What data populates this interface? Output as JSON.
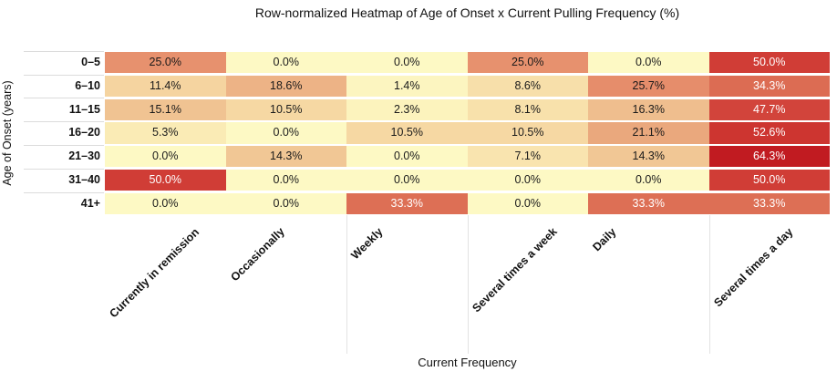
{
  "chart_data": {
    "type": "heatmap",
    "title": "Row-normalized Heatmap of Age of Onset x Current Pulling Frequency (%)",
    "xlabel": "Current Frequency",
    "ylabel": "Age of Onset (years)",
    "rows": [
      "0–5",
      "6–10",
      "11–15",
      "16–20",
      "21–30",
      "31–40",
      "41+"
    ],
    "columns": [
      "Currently in remission",
      "Occasionally",
      "Weekly",
      "Several times a week",
      "Daily",
      "Several times a day"
    ],
    "values": [
      [
        25.0,
        0.0,
        0.0,
        25.0,
        0.0,
        50.0
      ],
      [
        11.4,
        18.6,
        1.4,
        8.6,
        25.7,
        34.3
      ],
      [
        15.1,
        10.5,
        2.3,
        8.1,
        16.3,
        47.7
      ],
      [
        5.3,
        0.0,
        10.5,
        10.5,
        21.1,
        52.6
      ],
      [
        0.0,
        14.3,
        0.0,
        7.1,
        14.3,
        64.3
      ],
      [
        50.0,
        0.0,
        0.0,
        0.0,
        0.0,
        50.0
      ],
      [
        0.0,
        0.0,
        33.3,
        0.0,
        33.3,
        33.3
      ]
    ],
    "value_suffix": "%",
    "value_decimals": 1,
    "legend": "none",
    "grid": "faint column separators below plot and row separators in label margin",
    "color_scale": {
      "stops": [
        [
          0.0,
          "#FDF9C4"
        ],
        [
          5.3,
          "#FAEBB5"
        ],
        [
          10.5,
          "#F6D8A3"
        ],
        [
          14.3,
          "#F1C795"
        ],
        [
          18.6,
          "#EDB386"
        ],
        [
          21.1,
          "#EAA87D"
        ],
        [
          25.7,
          "#E68D6B"
        ],
        [
          33.3,
          "#DD6F55"
        ],
        [
          47.7,
          "#D2443B"
        ],
        [
          52.6,
          "#CD3530"
        ],
        [
          64.3,
          "#C11B21"
        ]
      ],
      "text_dark": "#1a1a1a",
      "text_light": "#ffffff",
      "light_text_threshold": 30
    }
  }
}
